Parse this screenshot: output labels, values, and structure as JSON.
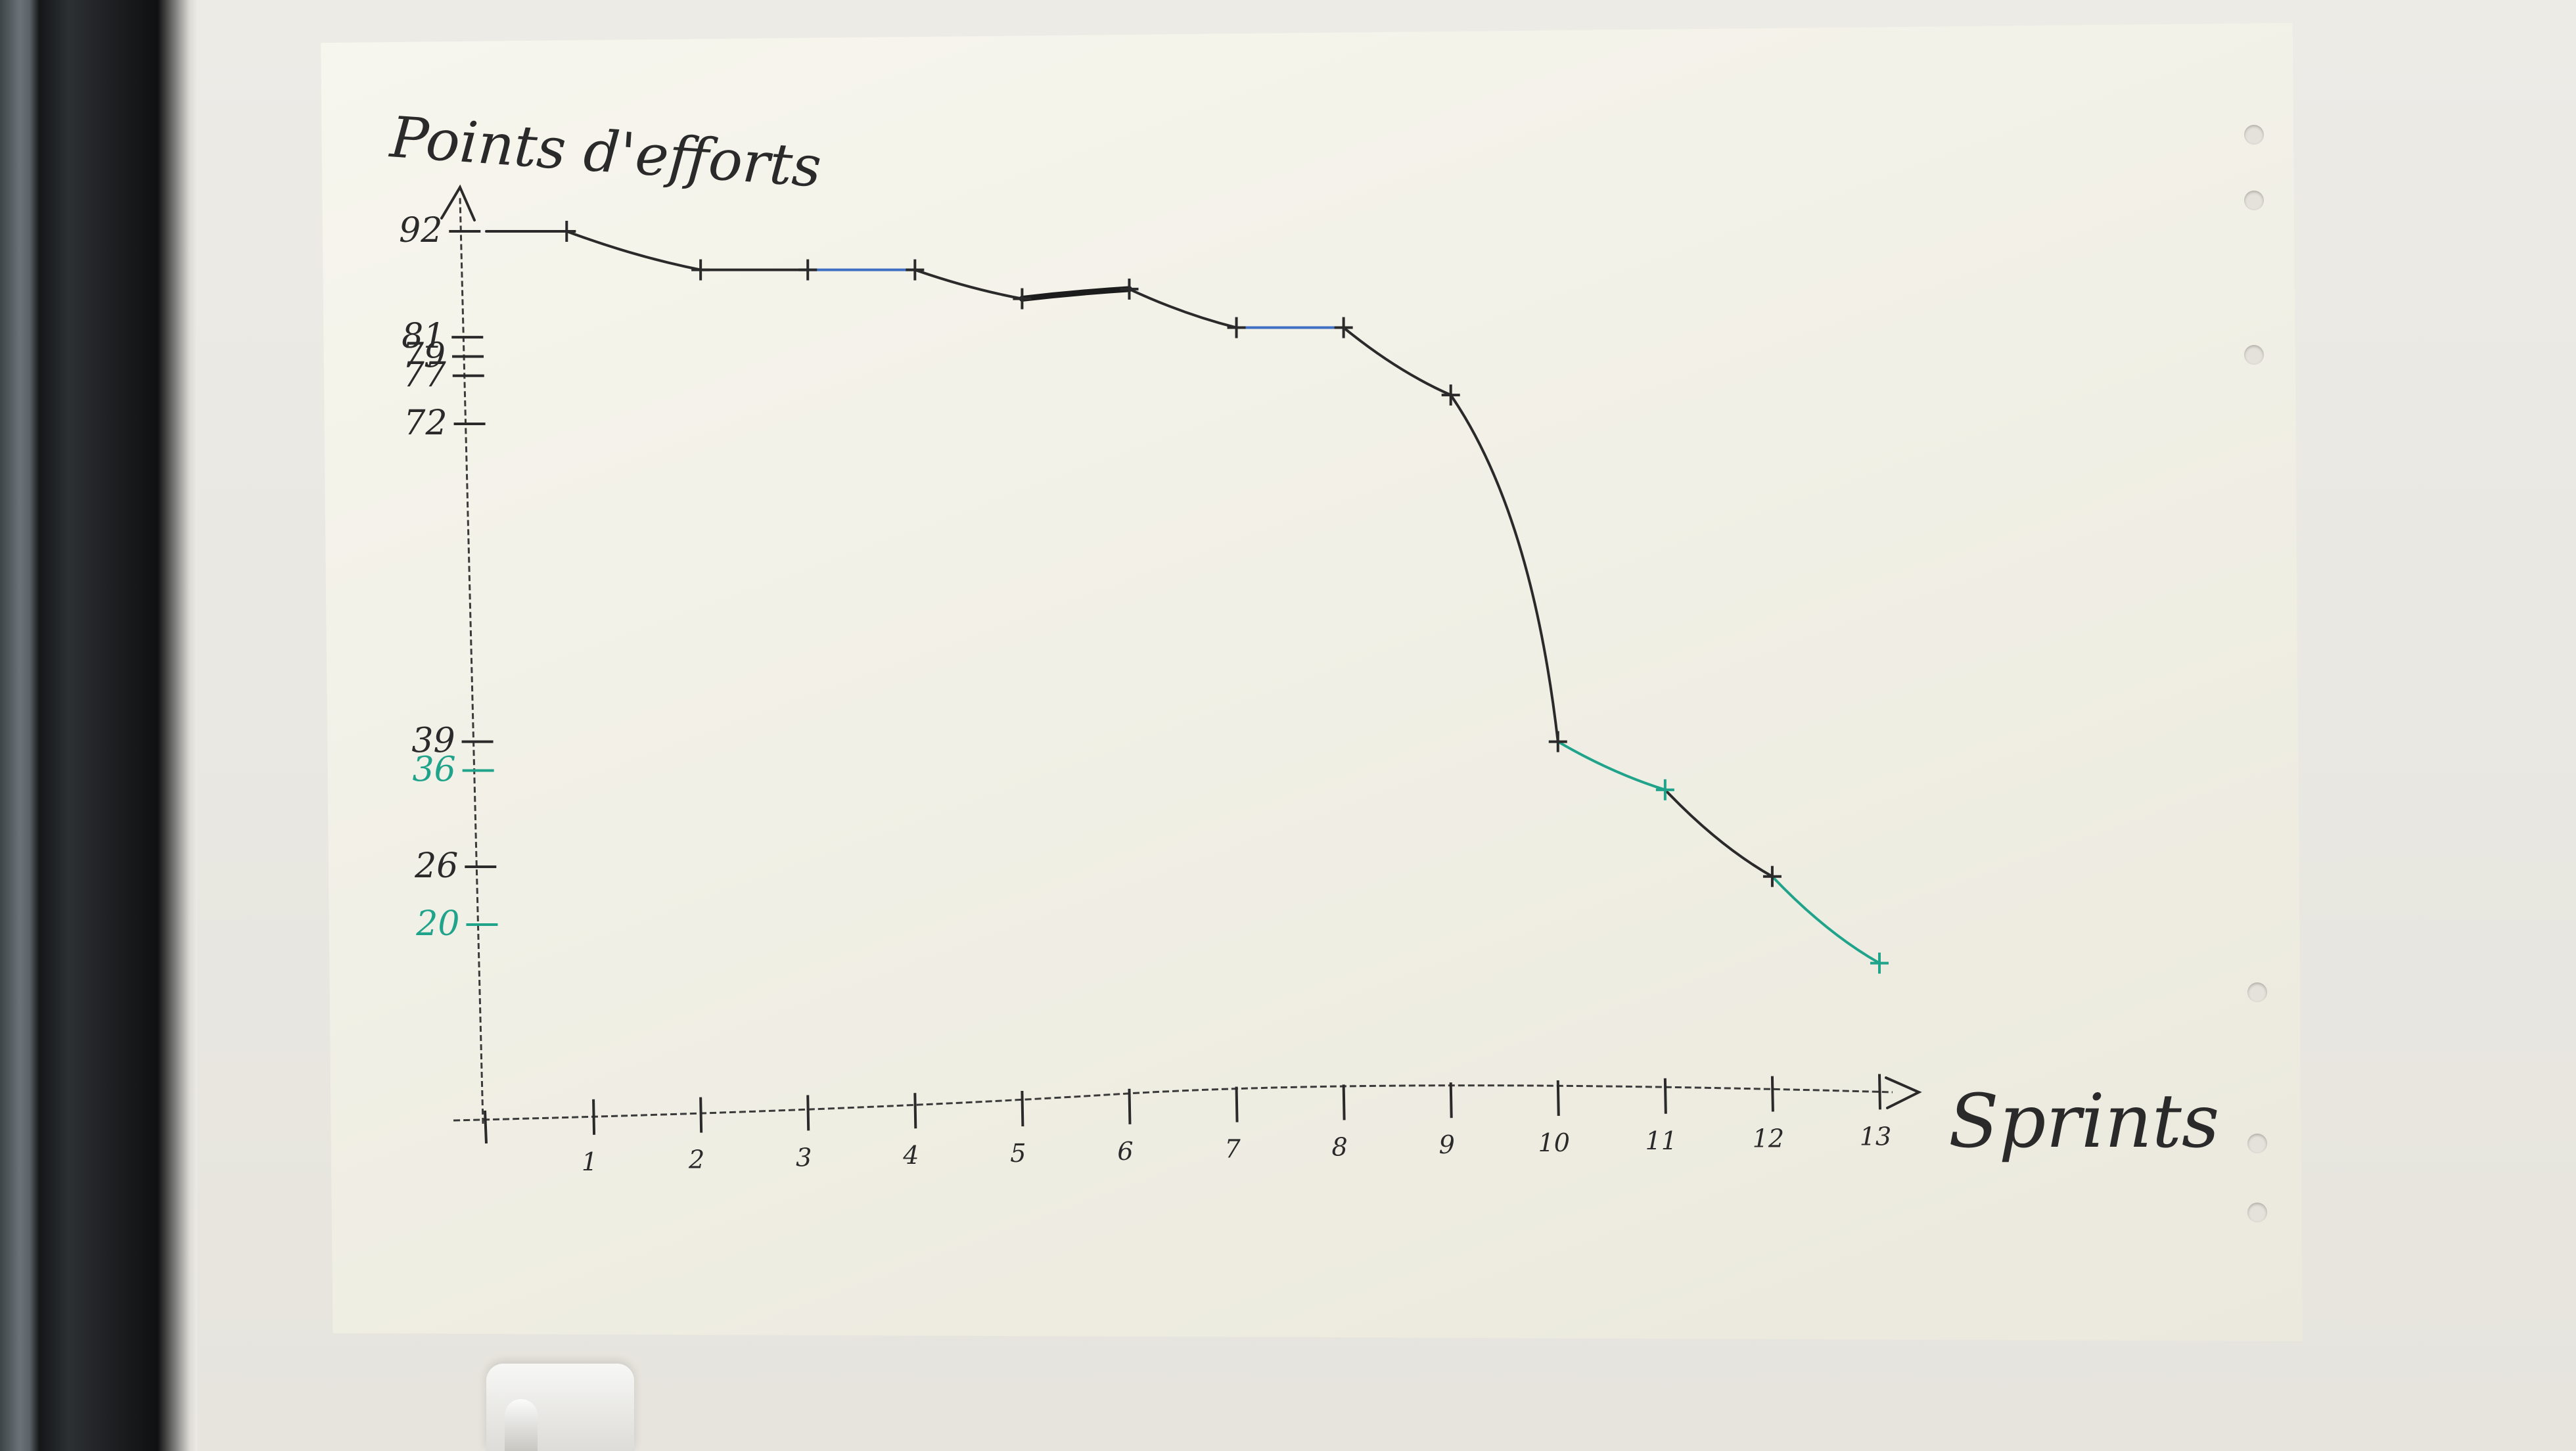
{
  "chart_data": {
    "type": "line",
    "title": "",
    "ylabel": "Points d'efforts",
    "xlabel": "Sprints",
    "xlim": [
      0,
      13
    ],
    "ylim": [
      0,
      92
    ],
    "grid": false,
    "legend": "none",
    "x_ticks": [
      {
        "value": 1,
        "label": "1"
      },
      {
        "value": 2,
        "label": "2"
      },
      {
        "value": 3,
        "label": "3"
      },
      {
        "value": 4,
        "label": "4"
      },
      {
        "value": 5,
        "label": "5"
      },
      {
        "value": 6,
        "label": "6"
      },
      {
        "value": 7,
        "label": "7"
      },
      {
        "value": 8,
        "label": "8"
      },
      {
        "value": 9,
        "label": "9"
      },
      {
        "value": 10,
        "label": "10"
      },
      {
        "value": 11,
        "label": "11"
      },
      {
        "value": 12,
        "label": "12"
      },
      {
        "value": 13,
        "label": "13"
      }
    ],
    "y_ticks": [
      {
        "value": 92,
        "label": "92",
        "color": "#2a2a2a"
      },
      {
        "value": 81,
        "label": "81",
        "color": "#2a2a2a"
      },
      {
        "value": 79,
        "label": "79",
        "color": "#2a2a2a"
      },
      {
        "value": 77,
        "label": "77",
        "color": "#2a2a2a"
      },
      {
        "value": 72,
        "label": "72",
        "color": "#2a2a2a"
      },
      {
        "value": 39,
        "label": "39",
        "color": "#2a2a2a"
      },
      {
        "value": 36,
        "label": "36",
        "color": "#1fa38a"
      },
      {
        "value": 26,
        "label": "26",
        "color": "#2a2a2a"
      },
      {
        "value": 20,
        "label": "20",
        "color": "#1fa38a"
      }
    ],
    "points": [
      {
        "x": 0,
        "y": 92
      },
      {
        "x": 0.75,
        "y": 92
      },
      {
        "x": 2,
        "y": 88
      },
      {
        "x": 3,
        "y": 88
      },
      {
        "x": 4,
        "y": 88
      },
      {
        "x": 5,
        "y": 85
      },
      {
        "x": 6,
        "y": 86
      },
      {
        "x": 7,
        "y": 82
      },
      {
        "x": 8,
        "y": 82
      },
      {
        "x": 9,
        "y": 75
      },
      {
        "x": 10,
        "y": 39
      },
      {
        "x": 11,
        "y": 34
      },
      {
        "x": 12,
        "y": 25
      },
      {
        "x": 13,
        "y": 16
      }
    ],
    "segments": [
      {
        "from": 0,
        "to": 1,
        "color": "#2a2a2a",
        "width": 4
      },
      {
        "from": 1,
        "to": 2,
        "color": "#2a2a2a",
        "width": 4
      },
      {
        "from": 2,
        "to": 3,
        "color": "#2a2a2a",
        "width": 4
      },
      {
        "from": 3,
        "to": 4,
        "color": "#3e6fc2",
        "width": 4
      },
      {
        "from": 4,
        "to": 5,
        "color": "#2a2a2a",
        "width": 4
      },
      {
        "from": 5,
        "to": 6,
        "color": "#1c1c1c",
        "width": 9
      },
      {
        "from": 6,
        "to": 7,
        "color": "#2a2a2a",
        "width": 4
      },
      {
        "from": 7,
        "to": 8,
        "color": "#3e6fc2",
        "width": 4
      },
      {
        "from": 8,
        "to": 9,
        "color": "#2a2a2a",
        "width": 4
      },
      {
        "from": 9,
        "to": 10,
        "color": "#2a2a2a",
        "width": 4
      },
      {
        "from": 10,
        "to": 11,
        "color": "#1fa38a",
        "width": 4
      },
      {
        "from": 11,
        "to": 12,
        "color": "#2a2a2a",
        "width": 4
      },
      {
        "from": 12,
        "to": 13,
        "color": "#1fa38a",
        "width": 4
      }
    ],
    "colors": {
      "ink": "#2a2a2a",
      "blue": "#3e6fc2",
      "green": "#1fa38a"
    }
  }
}
